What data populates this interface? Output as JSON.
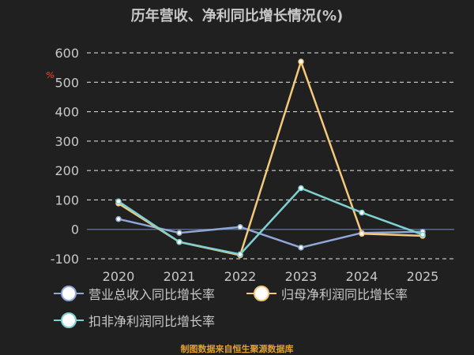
{
  "chart_data": {
    "type": "line",
    "title": "历年营收、净利同比增长情况(%)",
    "y_unit": "%",
    "categories": [
      "2020",
      "2021",
      "2022",
      "2023",
      "2024",
      "2025"
    ],
    "ylim": [
      -100,
      600
    ],
    "yticks": [
      "600",
      "500",
      "400",
      "300",
      "200",
      "100",
      "0",
      "-100"
    ],
    "grid": true,
    "legend_position": "bottom",
    "series": [
      {
        "name": "营业总收入同比增长率",
        "color": "#8fa8d8",
        "values": [
          35,
          -12,
          8,
          -62,
          -12,
          -8
        ]
      },
      {
        "name": "归母净利润同比增长率",
        "color": "#f5c97a",
        "values": [
          88,
          -43,
          -88,
          570,
          -15,
          -22
        ]
      },
      {
        "name": "扣非净利润同比增长率",
        "color": "#7fd0d0",
        "values": [
          95,
          -43,
          -85,
          140,
          57,
          -18
        ]
      }
    ]
  },
  "source": "制图数据来自恒生聚源数据库"
}
